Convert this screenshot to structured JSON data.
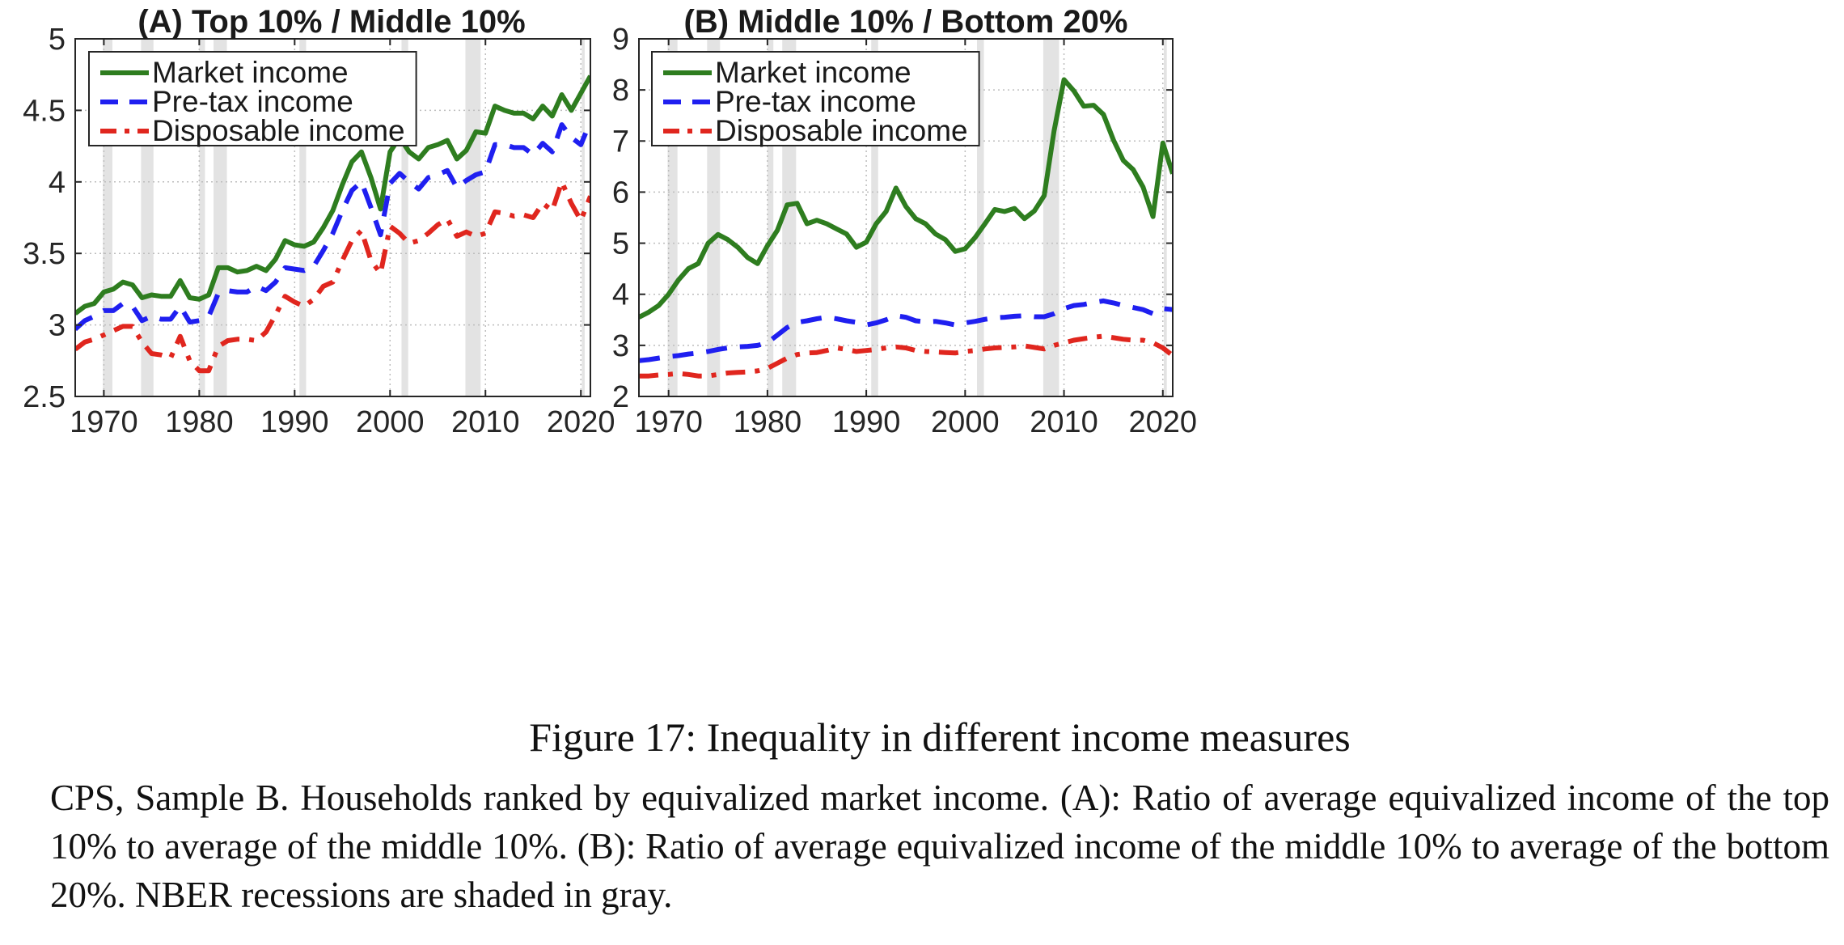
{
  "figure": {
    "title": "Figure 17: Inequality in different income measures",
    "description": "CPS, Sample B. Households ranked by equivalized market income. (A): Ratio of average equivalized income of the top 10% to average of the middle 10%. (B): Ratio of average equivalized income of the middle 10% to average of the bottom 20%. NBER recessions are shaded in gray."
  },
  "chart_data": [
    {
      "type": "line",
      "title": "(A) Top 10% / Middle 10%",
      "xlabel": "",
      "ylabel": "",
      "xlim": [
        1967,
        2021
      ],
      "ylim": [
        2.5,
        5
      ],
      "xticks": [
        1970,
        1980,
        1990,
        2000,
        2010,
        2020
      ],
      "yticks": [
        2.5,
        3,
        3.5,
        4,
        4.5,
        5
      ],
      "ytick_labels": [
        "2.5",
        "3",
        "3.5",
        "4",
        "4.5",
        "5"
      ],
      "grid": true,
      "legend_position": "top-left",
      "recessions": [
        [
          1969.9,
          1970.9
        ],
        [
          1973.9,
          1975.2
        ],
        [
          1980.0,
          1980.6
        ],
        [
          1981.5,
          1982.9
        ],
        [
          1990.5,
          1991.2
        ],
        [
          2001.2,
          2001.9
        ],
        [
          2007.9,
          2009.5
        ],
        [
          2020.1,
          2020.4
        ]
      ],
      "recession_color": "#e3e3e3",
      "x": [
        1967,
        1968,
        1969,
        1970,
        1971,
        1972,
        1973,
        1974,
        1975,
        1976,
        1977,
        1978,
        1979,
        1980,
        1981,
        1982,
        1983,
        1984,
        1985,
        1986,
        1987,
        1988,
        1989,
        1990,
        1991,
        1992,
        1993,
        1994,
        1995,
        1996,
        1997,
        1998,
        1999,
        2000,
        2001,
        2002,
        2003,
        2004,
        2005,
        2006,
        2007,
        2008,
        2009,
        2010,
        2011,
        2012,
        2013,
        2014,
        2015,
        2016,
        2017,
        2018,
        2019,
        2020,
        2021
      ],
      "series": [
        {
          "name": "Market income",
          "color": "#2e7d1f",
          "style": "solid",
          "values": [
            3.08,
            3.13,
            3.15,
            3.23,
            3.25,
            3.3,
            3.28,
            3.19,
            3.21,
            3.2,
            3.2,
            3.31,
            3.19,
            3.18,
            3.21,
            3.4,
            3.4,
            3.37,
            3.38,
            3.41,
            3.38,
            3.46,
            3.59,
            3.56,
            3.55,
            3.58,
            3.68,
            3.8,
            3.98,
            4.14,
            4.21,
            4.03,
            3.81,
            4.21,
            4.31,
            4.21,
            4.16,
            4.24,
            4.26,
            4.29,
            4.16,
            4.22,
            4.35,
            4.34,
            4.53,
            4.5,
            4.48,
            4.48,
            4.44,
            4.53,
            4.46,
            4.61,
            4.5,
            4.62,
            4.74
          ]
        },
        {
          "name": "Pre-tax income",
          "color": "#1f1ff0",
          "style": "dash",
          "values": [
            2.97,
            3.03,
            3.06,
            3.1,
            3.1,
            3.15,
            3.13,
            3.03,
            3.06,
            3.04,
            3.04,
            3.13,
            3.02,
            3.03,
            3.06,
            3.22,
            3.24,
            3.23,
            3.23,
            3.27,
            3.24,
            3.3,
            3.4,
            3.39,
            3.38,
            3.41,
            3.52,
            3.64,
            3.8,
            3.94,
            4.0,
            3.82,
            3.63,
            3.99,
            4.06,
            4.0,
            3.95,
            4.03,
            4.05,
            4.08,
            3.96,
            4.01,
            4.05,
            4.07,
            4.26,
            4.26,
            4.24,
            4.24,
            4.19,
            4.27,
            4.21,
            4.4,
            4.31,
            4.26,
            4.42
          ]
        },
        {
          "name": "Disposable income",
          "color": "#e0261e",
          "style": "dashdot",
          "values": [
            2.83,
            2.88,
            2.9,
            2.93,
            2.96,
            2.99,
            2.99,
            2.88,
            2.8,
            2.79,
            2.77,
            2.92,
            2.75,
            2.68,
            2.68,
            2.85,
            2.89,
            2.9,
            2.9,
            2.89,
            2.95,
            3.07,
            3.2,
            3.16,
            3.13,
            3.18,
            3.27,
            3.3,
            3.45,
            3.59,
            3.66,
            3.45,
            3.36,
            3.69,
            3.64,
            3.57,
            3.59,
            3.64,
            3.7,
            3.74,
            3.62,
            3.65,
            3.62,
            3.64,
            3.79,
            3.78,
            3.76,
            3.77,
            3.75,
            3.85,
            3.8,
            4.0,
            3.85,
            3.73,
            3.9
          ]
        }
      ]
    },
    {
      "type": "line",
      "title": "(B) Middle 10% / Bottom 20%",
      "xlabel": "",
      "ylabel": "",
      "xlim": [
        1967,
        2021
      ],
      "ylim": [
        2,
        9
      ],
      "xticks": [
        1970,
        1980,
        1990,
        2000,
        2010,
        2020
      ],
      "yticks": [
        2,
        3,
        4,
        5,
        6,
        7,
        8,
        9
      ],
      "ytick_labels": [
        "2",
        "3",
        "4",
        "5",
        "6",
        "7",
        "8",
        "9"
      ],
      "grid": true,
      "legend_position": "top-left",
      "recessions": [
        [
          1969.9,
          1970.9
        ],
        [
          1973.9,
          1975.2
        ],
        [
          1980.0,
          1980.6
        ],
        [
          1981.5,
          1982.9
        ],
        [
          1990.5,
          1991.2
        ],
        [
          2001.2,
          2001.9
        ],
        [
          2007.9,
          2009.5
        ],
        [
          2020.1,
          2020.4
        ]
      ],
      "recession_color": "#e3e3e3",
      "x": [
        1967,
        1968,
        1969,
        1970,
        1971,
        1972,
        1973,
        1974,
        1975,
        1976,
        1977,
        1978,
        1979,
        1980,
        1981,
        1982,
        1983,
        1984,
        1985,
        1986,
        1987,
        1988,
        1989,
        1990,
        1991,
        1992,
        1993,
        1994,
        1995,
        1996,
        1997,
        1998,
        1999,
        2000,
        2001,
        2002,
        2003,
        2004,
        2005,
        2006,
        2007,
        2008,
        2009,
        2010,
        2011,
        2012,
        2013,
        2014,
        2015,
        2016,
        2017,
        2018,
        2019,
        2020,
        2021
      ],
      "series": [
        {
          "name": "Market income",
          "color": "#2e7d1f",
          "style": "solid",
          "values": [
            3.55,
            3.65,
            3.78,
            4.0,
            4.28,
            4.5,
            4.6,
            5.0,
            5.17,
            5.07,
            4.92,
            4.72,
            4.6,
            4.95,
            5.25,
            5.75,
            5.78,
            5.38,
            5.45,
            5.38,
            5.28,
            5.18,
            4.92,
            5.02,
            5.38,
            5.62,
            6.08,
            5.72,
            5.48,
            5.38,
            5.18,
            5.07,
            4.84,
            4.89,
            5.11,
            5.38,
            5.66,
            5.62,
            5.68,
            5.48,
            5.63,
            5.93,
            7.2,
            8.2,
            7.98,
            7.68,
            7.7,
            7.52,
            7.02,
            6.62,
            6.44,
            6.1,
            5.52,
            6.96,
            6.36
          ]
        },
        {
          "name": "Pre-tax income",
          "color": "#1f1ff0",
          "style": "dash",
          "values": [
            2.7,
            2.72,
            2.75,
            2.78,
            2.8,
            2.83,
            2.85,
            2.88,
            2.92,
            2.95,
            2.97,
            2.98,
            3.0,
            3.05,
            3.2,
            3.35,
            3.45,
            3.48,
            3.52,
            3.55,
            3.52,
            3.48,
            3.45,
            3.4,
            3.44,
            3.5,
            3.58,
            3.55,
            3.48,
            3.46,
            3.47,
            3.44,
            3.4,
            3.44,
            3.47,
            3.51,
            3.54,
            3.55,
            3.57,
            3.58,
            3.56,
            3.56,
            3.62,
            3.72,
            3.78,
            3.8,
            3.84,
            3.87,
            3.83,
            3.78,
            3.74,
            3.7,
            3.62,
            3.72,
            3.7
          ]
        },
        {
          "name": "Disposable income",
          "color": "#e0261e",
          "style": "dashdot",
          "values": [
            2.4,
            2.4,
            2.42,
            2.43,
            2.45,
            2.43,
            2.4,
            2.4,
            2.43,
            2.46,
            2.47,
            2.48,
            2.5,
            2.55,
            2.65,
            2.75,
            2.82,
            2.85,
            2.86,
            2.9,
            2.95,
            2.92,
            2.88,
            2.9,
            2.92,
            2.95,
            2.97,
            2.95,
            2.9,
            2.88,
            2.87,
            2.86,
            2.85,
            2.88,
            2.9,
            2.93,
            2.95,
            2.96,
            2.97,
            2.99,
            2.96,
            2.93,
            3.0,
            3.05,
            3.1,
            3.13,
            3.16,
            3.18,
            3.15,
            3.12,
            3.1,
            3.1,
            3.05,
            2.95,
            2.8
          ]
        }
      ]
    }
  ]
}
